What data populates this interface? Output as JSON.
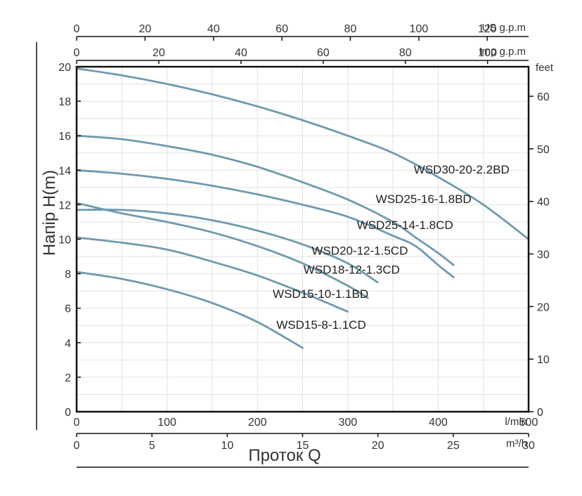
{
  "chart_data": {
    "type": "line",
    "ylabel": "Напір H(m)",
    "xlabel": "Проток Q",
    "ylim": [
      0,
      20
    ],
    "xlim": [
      0,
      500
    ],
    "grid": true,
    "y_ticks": [
      "0",
      "2",
      "4",
      "6",
      "8",
      "10",
      "12",
      "14",
      "16",
      "18",
      "20"
    ],
    "y_ticks_values": [
      0,
      2,
      4,
      6,
      8,
      10,
      12,
      14,
      16,
      18,
      20
    ],
    "y_right": {
      "unit": "feet",
      "ticks": [
        "0",
        "10",
        "20",
        "30",
        "40",
        "50",
        "60"
      ],
      "values": [
        0,
        10,
        20,
        30,
        40,
        50,
        60
      ]
    },
    "x_axes": [
      {
        "name": "us_gpm",
        "unit": "US g.p.m",
        "ticks": [
          "0",
          "20",
          "40",
          "60",
          "80",
          "100",
          "120"
        ],
        "values": [
          0,
          20,
          40,
          60,
          80,
          100,
          120
        ]
      },
      {
        "name": "imp_gpm",
        "unit": "Imp g.p.m",
        "ticks": [
          "0",
          "20",
          "40",
          "60",
          "80",
          "100"
        ],
        "values": [
          0,
          20,
          40,
          60,
          80,
          100
        ]
      },
      {
        "name": "lmin",
        "unit": "l/min",
        "ticks": [
          "0",
          "100",
          "200",
          "300",
          "400",
          "500"
        ],
        "values": [
          0,
          100,
          200,
          300,
          400,
          500
        ]
      },
      {
        "name": "m3h",
        "unit": "m³/h",
        "ticks": [
          "0",
          "5",
          "10",
          "15",
          "20",
          "25",
          "30"
        ],
        "values": [
          0,
          5,
          10,
          15,
          20,
          25,
          30
        ]
      }
    ],
    "series": [
      {
        "name": "WSD30-20-2.2BD",
        "x": [
          0,
          50,
          100,
          150,
          200,
          250,
          300,
          350,
          400,
          450,
          500
        ],
        "y": [
          19.9,
          19.5,
          19.0,
          18.4,
          17.7,
          16.9,
          16.0,
          15.0,
          13.6,
          12.0,
          10.0
        ]
      },
      {
        "name": "WSD25-16-1.8BD",
        "x": [
          0,
          50,
          100,
          150,
          200,
          250,
          300,
          350,
          375,
          400,
          417
        ],
        "y": [
          16.0,
          15.8,
          15.4,
          14.9,
          14.2,
          13.3,
          12.3,
          11.0,
          10.1,
          9.2,
          8.5
        ]
      },
      {
        "name": "WSD25-14-1.8CD",
        "x": [
          0,
          50,
          100,
          150,
          200,
          250,
          300,
          350,
          375,
          400,
          417
        ],
        "y": [
          14.0,
          13.8,
          13.5,
          13.1,
          12.6,
          12.0,
          11.3,
          10.2,
          9.6,
          8.5,
          7.8
        ]
      },
      {
        "name": "WSD20-12-1.5CD",
        "x": [
          0,
          50,
          100,
          150,
          200,
          250,
          300,
          333
        ],
        "y": [
          11.7,
          11.7,
          11.5,
          11.1,
          10.5,
          9.7,
          8.6,
          7.5
        ]
      },
      {
        "name": "WSD18-12-1.3CD",
        "x": [
          0,
          50,
          100,
          150,
          200,
          250,
          300,
          322
        ],
        "y": [
          12.1,
          11.5,
          11.0,
          10.4,
          9.6,
          8.6,
          7.3,
          6.6
        ]
      },
      {
        "name": "WSD15-10-1.1BD",
        "x": [
          0,
          50,
          100,
          150,
          200,
          250,
          300
        ],
        "y": [
          10.1,
          9.8,
          9.4,
          8.7,
          7.9,
          6.9,
          5.8
        ]
      },
      {
        "name": "WSD15-8-1.1CD",
        "x": [
          0,
          50,
          100,
          150,
          200,
          250
        ],
        "y": [
          8.1,
          7.7,
          7.1,
          6.3,
          5.2,
          3.7
        ]
      }
    ],
    "series_labels": [
      {
        "name": "WSD30-20-2.2BD",
        "at": [
          373,
          13.8
        ]
      },
      {
        "name": "WSD25-16-1.8BD",
        "at": [
          331,
          12.1
        ]
      },
      {
        "name": "WSD25-14-1.8CD",
        "at": [
          310,
          10.6
        ]
      },
      {
        "name": "WSD20-12-1.5CD",
        "at": [
          260,
          9.1
        ]
      },
      {
        "name": "WSD18-12-1.3CD",
        "at": [
          251,
          8.0
        ]
      },
      {
        "name": "WSD15-10-1.1BD",
        "at": [
          217,
          6.6
        ]
      },
      {
        "name": "WSD15-8-1.1CD",
        "at": [
          221,
          4.8
        ]
      }
    ],
    "colors": {
      "curve": "#6f9aad",
      "grid": "#e1e1e1",
      "frame": "#111111",
      "text": "#333333"
    }
  }
}
